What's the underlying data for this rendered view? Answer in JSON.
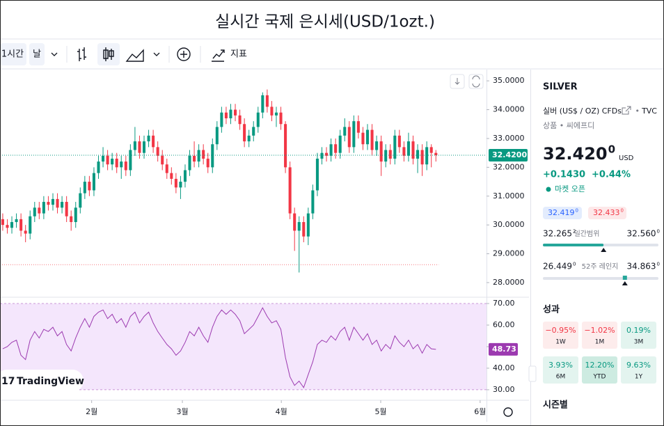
{
  "header": {
    "title": "실시간 국제 은시세(USD/1ozt.)"
  },
  "toolbar": {
    "interval": "1시간",
    "chart_style": "날",
    "indicators": "지표"
  },
  "watermark": "TradingView",
  "chart_data": [
    {
      "type": "candlestick",
      "up_color": "#089981",
      "down_color": "#f23645",
      "open": [
        30.2,
        30.0,
        29.9,
        30.1,
        30.2,
        29.8,
        29.7,
        30.3,
        30.6,
        30.4,
        30.8,
        30.7,
        30.9,
        30.6,
        30.8,
        30.3,
        30.1,
        30.6,
        31.1,
        31.5,
        31.2,
        31.8,
        32.2,
        32.4,
        32.1,
        32.3,
        32.0,
        32.2,
        31.9,
        32.6,
        32.9,
        32.5,
        32.9,
        33.1,
        32.7,
        32.4,
        32.1,
        31.8,
        31.6,
        31.3,
        31.5,
        31.9,
        32.4,
        32.2,
        32.6,
        32.3,
        32.0,
        32.8,
        33.4,
        33.9,
        33.7,
        34.0,
        33.8,
        33.5,
        32.9,
        33.1,
        33.4,
        33.9,
        34.5,
        34.1,
        33.8,
        33.9,
        33.5,
        32.0,
        30.4,
        29.8,
        30.1,
        29.6,
        30.4,
        31.2,
        32.3,
        32.5,
        32.4,
        32.8,
        32.5,
        33.1,
        33.4,
        32.7,
        33.6,
        33.2,
        32.8,
        33.3,
        32.6,
        32.9,
        32.2,
        32.6,
        32.3,
        33.1,
        32.7,
        32.4,
        32.9,
        32.3,
        32.6,
        32.1,
        32.7,
        32.5
      ],
      "high": [
        30.4,
        30.2,
        30.3,
        30.4,
        30.4,
        30.0,
        30.5,
        30.8,
        30.8,
        31.0,
        31.0,
        31.1,
        31.1,
        31.0,
        31.0,
        30.5,
        30.8,
        31.3,
        31.7,
        31.7,
        32.0,
        32.4,
        32.7,
        32.6,
        32.5,
        32.5,
        32.4,
        32.4,
        32.8,
        33.4,
        33.1,
        33.1,
        33.3,
        33.3,
        32.9,
        32.6,
        32.3,
        32.0,
        31.8,
        31.7,
        32.1,
        32.6,
        32.9,
        32.8,
        32.8,
        32.5,
        33.0,
        33.6,
        34.1,
        34.1,
        34.2,
        34.2,
        34.0,
        33.7,
        33.3,
        33.6,
        34.1,
        34.6,
        34.7,
        34.3,
        34.1,
        34.1,
        33.6,
        32.2,
        30.6,
        30.3,
        30.3,
        30.6,
        31.4,
        32.5,
        32.7,
        32.7,
        33.0,
        33.0,
        33.3,
        33.7,
        33.6,
        33.8,
        33.8,
        33.4,
        33.5,
        33.5,
        33.1,
        33.1,
        32.8,
        32.8,
        33.3,
        33.3,
        32.9,
        33.2,
        33.1,
        32.8,
        32.8,
        32.9,
        32.8,
        32.6
      ],
      "low": [
        29.8,
        29.7,
        29.7,
        29.9,
        29.6,
        29.4,
        29.5,
        30.1,
        30.2,
        30.2,
        30.5,
        30.5,
        30.4,
        30.4,
        30.1,
        29.8,
        29.9,
        30.4,
        30.9,
        31.0,
        31.0,
        31.6,
        32.0,
        31.9,
        31.9,
        31.8,
        31.6,
        31.7,
        31.7,
        32.4,
        32.3,
        32.3,
        32.7,
        32.5,
        32.2,
        31.9,
        31.6,
        31.4,
        31.1,
        30.9,
        31.3,
        31.7,
        32.0,
        32.0,
        32.1,
        31.8,
        31.8,
        32.6,
        33.2,
        33.5,
        33.5,
        33.6,
        33.3,
        32.7,
        32.7,
        32.9,
        33.2,
        33.7,
        33.9,
        33.6,
        33.4,
        33.3,
        31.8,
        30.2,
        29.1,
        28.35,
        29.4,
        29.3,
        30.2,
        31.0,
        32.1,
        32.2,
        32.2,
        32.3,
        32.3,
        32.9,
        32.5,
        32.5,
        33.0,
        32.6,
        32.6,
        32.4,
        32.4,
        31.7,
        32.0,
        32.1,
        32.1,
        32.5,
        32.2,
        32.2,
        32.1,
        31.8,
        31.7,
        31.9,
        32.0,
        32.2
      ],
      "close": [
        30.0,
        29.9,
        30.1,
        30.2,
        29.8,
        29.7,
        30.3,
        30.6,
        30.4,
        30.8,
        30.7,
        30.9,
        30.6,
        30.8,
        30.3,
        30.1,
        30.6,
        31.1,
        31.5,
        31.2,
        31.8,
        32.2,
        32.4,
        32.1,
        32.3,
        32.0,
        32.2,
        31.9,
        32.6,
        32.9,
        32.5,
        32.9,
        33.1,
        32.7,
        32.4,
        32.1,
        31.8,
        31.6,
        31.3,
        31.5,
        31.9,
        32.4,
        32.2,
        32.6,
        32.3,
        32.0,
        32.8,
        33.4,
        33.9,
        33.7,
        34.0,
        33.8,
        33.5,
        32.9,
        33.1,
        33.4,
        33.9,
        34.5,
        34.1,
        33.8,
        33.9,
        33.5,
        32.0,
        30.4,
        29.8,
        30.1,
        29.6,
        30.4,
        31.2,
        32.3,
        32.5,
        32.4,
        32.8,
        32.5,
        33.1,
        33.4,
        32.7,
        33.6,
        33.2,
        32.8,
        33.3,
        32.6,
        32.9,
        32.2,
        32.6,
        32.3,
        33.1,
        32.7,
        32.4,
        32.9,
        32.3,
        32.6,
        32.1,
        32.7,
        32.5,
        32.42
      ],
      "ylim": [
        27.54,
        35.39
      ],
      "yticks": [
        {
          "value": 35,
          "label": "35.0000"
        },
        {
          "value": 34,
          "label": "34.0000"
        },
        {
          "value": 33,
          "label": "33.0000"
        },
        {
          "value": 32,
          "label": "32.0000"
        },
        {
          "value": 31,
          "label": "31.0000"
        },
        {
          "value": 30,
          "label": "30.0000"
        },
        {
          "value": 29,
          "label": "29.0000"
        },
        {
          "value": 28,
          "label": "28.0000"
        }
      ],
      "xlim": [
        -0.6,
        105.95
      ],
      "xticks": [
        {
          "value": 19.5,
          "label": "2월"
        },
        {
          "value": 39.4,
          "label": "3월"
        },
        {
          "value": 61.1,
          "label": "4월"
        },
        {
          "value": 82.9,
          "label": "5월"
        },
        {
          "value": 104.7,
          "label": "6월"
        }
      ],
      "last_price": {
        "value": 32.42,
        "label": "32.4200"
      },
      "last_price_color": "#089981",
      "reference_line": 28.62,
      "reference_color": "#f23645"
    },
    {
      "type": "line",
      "color": "#9c3ab0",
      "band": [
        30,
        70
      ],
      "band_color": "#f4e6fc",
      "values": [
        49,
        50,
        52,
        53,
        46,
        44,
        53,
        57,
        54,
        58,
        57,
        59,
        55,
        57,
        51,
        48,
        54,
        59,
        63,
        59,
        64,
        66,
        67,
        63,
        65,
        61,
        63,
        59,
        64,
        66,
        61,
        64,
        66,
        61,
        57,
        54,
        51,
        49,
        46,
        48,
        52,
        57,
        55,
        59,
        55,
        52,
        59,
        64,
        67,
        65,
        67,
        65,
        62,
        56,
        58,
        60,
        64,
        68,
        64,
        61,
        62,
        58,
        45,
        36,
        32,
        34,
        31,
        37,
        43,
        51,
        53,
        52,
        55,
        53,
        57,
        59,
        53,
        59,
        56,
        53,
        56,
        51,
        53,
        48,
        51,
        49,
        55,
        52,
        50,
        53,
        49,
        51,
        47,
        51,
        49,
        48.73
      ],
      "ylim": [
        26.1,
        72.6
      ],
      "yticks": [
        {
          "value": 70,
          "label": "70.00"
        },
        {
          "value": 60,
          "label": "60.00"
        },
        {
          "value": 50,
          "label": "50.00"
        },
        {
          "value": 40,
          "label": "40.00"
        },
        {
          "value": 30,
          "label": "30.00"
        }
      ]
    }
  ],
  "symbol_panel": {
    "symbol": "SILVER",
    "name": "실버 (US$ / OZ) CFDs",
    "exchange": "TVC",
    "category": "상품 • 씨에프디",
    "price": {
      "value": 32.42,
      "label": "32.420",
      "label_sup": "0"
    },
    "currency": "USD",
    "change": "+0.1430",
    "change_percent": "+0.44%",
    "status": "마켓 오픈",
    "bid": {
      "label": "32.419",
      "label_sup": "0"
    },
    "ask": {
      "label": "32.433",
      "label_sup": "0"
    },
    "day_range": {
      "title": "일간범위",
      "low": {
        "value": 32.2652,
        "label": "32.265",
        "label_sup": "2"
      },
      "high": {
        "value": 32.56,
        "label": "32.560",
        "label_sup": "0"
      }
    },
    "week52_range": {
      "title": "52주 레인지",
      "low": {
        "value": 26.449,
        "label": "26.449",
        "label_sup": "0"
      },
      "high": {
        "value": 34.863,
        "label": "34.863",
        "label_sup": "0"
      }
    },
    "performance_title": "성과",
    "performance": [
      {
        "value": "−0.95%",
        "period": "1W",
        "color": "#f23645",
        "background": "#fdecec"
      },
      {
        "value": "−1.02%",
        "period": "1M",
        "color": "#f23645",
        "background": "#fdecec"
      },
      {
        "value": "0.19%",
        "period": "3M",
        "color": "#089981",
        "background": "#e3f4ef"
      },
      {
        "value": "3.93%",
        "period": "6M",
        "color": "#089981",
        "background": "#e3f4ef"
      },
      {
        "value": "12.20%",
        "period": "YTD",
        "color": "#089981",
        "background": "#cdebe1"
      },
      {
        "value": "9.63%",
        "period": "1Y",
        "color": "#089981",
        "background": "#e3f4ef"
      }
    ],
    "seasonals_title": "시즌별"
  }
}
